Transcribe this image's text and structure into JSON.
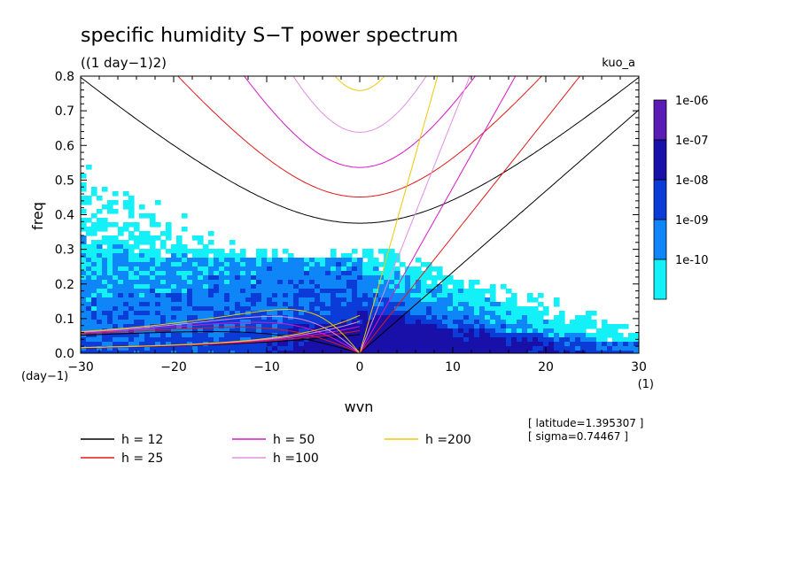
{
  "chart_data": {
    "type": "heatmap",
    "title": "specific humidity S−T power spectrum",
    "subtitle": "((1 day−1)2)",
    "tag": "kuo_a",
    "xlabel": "wvn",
    "ylabel": "freq",
    "x_unit": "(1)",
    "y_unit": "(day−1)",
    "xlim": [
      -30,
      30
    ],
    "ylim": [
      0,
      0.8
    ],
    "x_ticks": [
      -30,
      -20,
      -10,
      0,
      10,
      20,
      30
    ],
    "x_tick_labels": [
      "−30",
      "−20",
      "−10",
      "0",
      "10",
      "20",
      "30"
    ],
    "y_ticks": [
      0,
      0.1,
      0.2,
      0.3,
      0.4,
      0.5,
      0.6,
      0.7,
      0.8
    ],
    "y_tick_labels": [
      "0.0",
      "0.1",
      "0.2",
      "0.3",
      "0.4",
      "0.5",
      "0.6",
      "0.7",
      "0.8"
    ],
    "colorbar": {
      "labels": [
        "1e-06",
        "1e-07",
        "1e-08",
        "1e-09",
        "1e-10"
      ],
      "colors": [
        "#5a1cb4",
        "#1810a8",
        "#0c3cd8",
        "#0e86f8",
        "#14f0f8"
      ]
    },
    "fill_colors": {
      "light": "#14f0f8",
      "mid": "#0e86f8",
      "dark": "#0c3cd8",
      "darkest": "#1810a8"
    },
    "series": [
      {
        "name": "h = 12",
        "h": 12,
        "color": "#000000"
      },
      {
        "name": "h = 25",
        "h": 25,
        "color": "#e01818"
      },
      {
        "name": "h = 50",
        "h": 50,
        "color": "#d818c8"
      },
      {
        "name": "h =100",
        "h": 100,
        "color": "#e090e0"
      },
      {
        "name": "h =200",
        "h": 200,
        "color": "#f0c800"
      }
    ],
    "annotations": [
      "[ latitude=1.395307 ]",
      "[ sigma=0.74467 ]"
    ]
  }
}
